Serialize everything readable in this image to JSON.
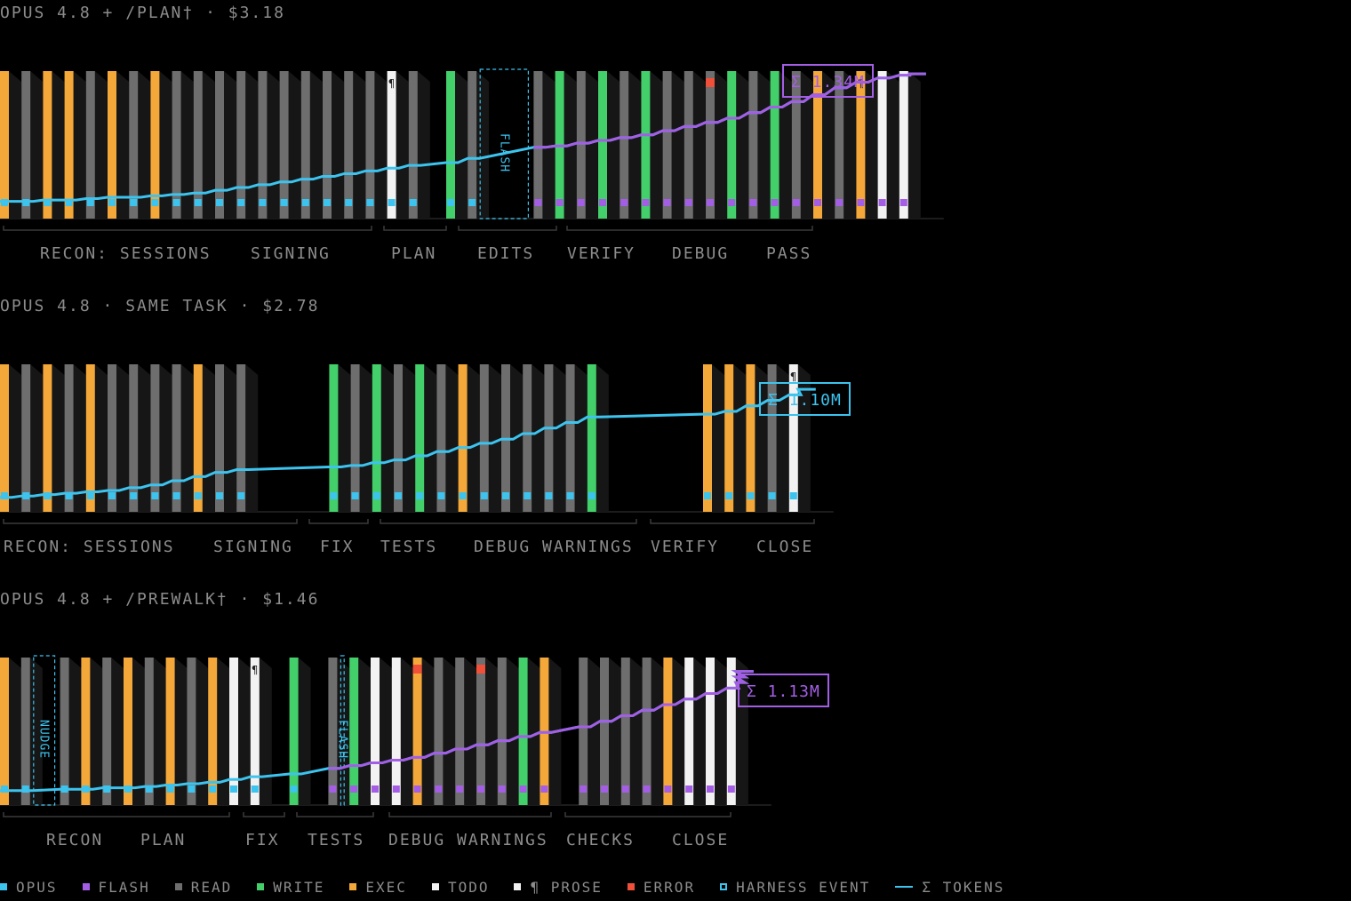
{
  "colors": {
    "opus": "#3cc3ee",
    "flash": "#a45ee6",
    "read": "#6e6e6e",
    "write": "#43cf6a",
    "exec": "#f4a83a",
    "todo": "#f2f2f2",
    "prose": "#f2f2f2",
    "error": "#f0503a",
    "harness": "#3cc3ee",
    "tokens": "#3cc3ee"
  },
  "legend": [
    {
      "label": "OPUS",
      "kind": "swatch",
      "color": "#3cc3ee"
    },
    {
      "label": "FLASH",
      "kind": "swatch",
      "color": "#a45ee6"
    },
    {
      "label": "READ",
      "kind": "swatch",
      "color": "#6e6e6e"
    },
    {
      "label": "WRITE",
      "kind": "swatch",
      "color": "#43cf6a"
    },
    {
      "label": "EXEC",
      "kind": "swatch",
      "color": "#f4a83a"
    },
    {
      "label": "TODO",
      "kind": "swatch",
      "color": "#f2f2f2"
    },
    {
      "label": "¶ PROSE",
      "kind": "swatch",
      "color": "#f2f2f2"
    },
    {
      "label": "ERROR",
      "kind": "swatch",
      "color": "#f0503a"
    },
    {
      "label": "HARNESS EVENT",
      "kind": "box",
      "color": "#3cc3ee"
    },
    {
      "label": "Σ TOKENS",
      "kind": "line",
      "color": "#3cc3ee"
    }
  ],
  "chart_data": [
    {
      "type": "bar",
      "title": "OPUS 4.8 + /PLAN† · $3.18",
      "total_label": "Σ 1.34M",
      "total_color": "#a45ee6",
      "bars": "EREERERERRRRRRRRRRTR|WR|RWRWRWRXRWRWRERETT",
      "models": "OOOOOOOOOOOOOOOOOOOOO|OO|FFFFFFFFFFFFFFFFFFFF",
      "flags": {
        "errors": [
          30
        ],
        "prose": [
          18,
          37
        ]
      },
      "harness_events": [
        {
          "label": "FLASH",
          "after": 21
        }
      ],
      "phases": [
        "RECON: SESSIONS",
        "SIGNING",
        "PLAN",
        "EDITS",
        "VERIFY",
        "DEBUG",
        "PASS"
      ],
      "tokens": [
        0.06,
        0.06,
        0.07,
        0.07,
        0.08,
        0.09,
        0.09,
        0.1,
        0.11,
        0.12,
        0.14,
        0.16,
        0.18,
        0.2,
        0.22,
        0.24,
        0.26,
        0.28,
        0.3,
        0.32,
        0.34,
        0.37,
        0.45,
        0.46,
        0.48,
        0.5,
        0.52,
        0.54,
        0.57,
        0.6,
        0.63,
        0.66,
        0.7,
        0.74,
        0.78,
        0.83,
        0.88,
        0.92,
        0.95,
        0.97,
        0.98
      ]
    },
    {
      "type": "bar",
      "title": "OPUS 4.8 · SAME TASK · $2.78",
      "total_label": "Σ 1.10M",
      "total_color": "#3cc3ee",
      "bars": "ERERERRRRERR|WRWRWRERRRRRW|EEERT",
      "models": "OOOOOOOOOOOO|OOOOOOOOOOOOO|OOOOO",
      "flags": {
        "errors": [],
        "prose": [
          29
        ]
      },
      "phases": [
        "RECON: SESSIONS",
        "SIGNING",
        "FIX",
        "TESTS",
        "DEBUG WARNINGS",
        "VERIFY",
        "CLOSE"
      ],
      "tokens": [
        0.04,
        0.05,
        0.06,
        0.07,
        0.08,
        0.09,
        0.11,
        0.13,
        0.16,
        0.19,
        0.22,
        0.24,
        0.26,
        0.27,
        0.29,
        0.31,
        0.34,
        0.37,
        0.4,
        0.43,
        0.46,
        0.5,
        0.54,
        0.58,
        0.62,
        0.64,
        0.66,
        0.7,
        0.74,
        0.78,
        0.82
      ]
    },
    {
      "type": "bar",
      "title": "OPUS 4.8 + /PREWALK† · $1.46",
      "total_label": "Σ 1.13M",
      "total_color": "#a45ee6",
      "bars": "ER|RERERERETT|W|RWTTERRRRWE|RRRRETTT",
      "models": "OO|OOOOOOOOOO|O|FFFFFFFFFFF|FFFFFFFF",
      "flags": {
        "errors": [
          17,
          20
        ],
        "prose": [
          11,
          34
        ]
      },
      "harness_events": [
        {
          "label": "NUDGE",
          "after": 1
        },
        {
          "label": "FLASH",
          "after": 13
        }
      ],
      "phases": [
        "RECON",
        "PLAN",
        "FIX",
        "TESTS",
        "DEBUG WARNINGS",
        "CHECKS",
        "CLOSE"
      ],
      "tokens": [
        0.04,
        0.04,
        0.05,
        0.05,
        0.06,
        0.06,
        0.07,
        0.08,
        0.09,
        0.1,
        0.12,
        0.14,
        0.16,
        0.2,
        0.22,
        0.24,
        0.26,
        0.28,
        0.31,
        0.34,
        0.37,
        0.4,
        0.43,
        0.46,
        0.5,
        0.54,
        0.58,
        0.62,
        0.66,
        0.7,
        0.74,
        0.78,
        0.82,
        0.86,
        0.9
      ]
    }
  ]
}
